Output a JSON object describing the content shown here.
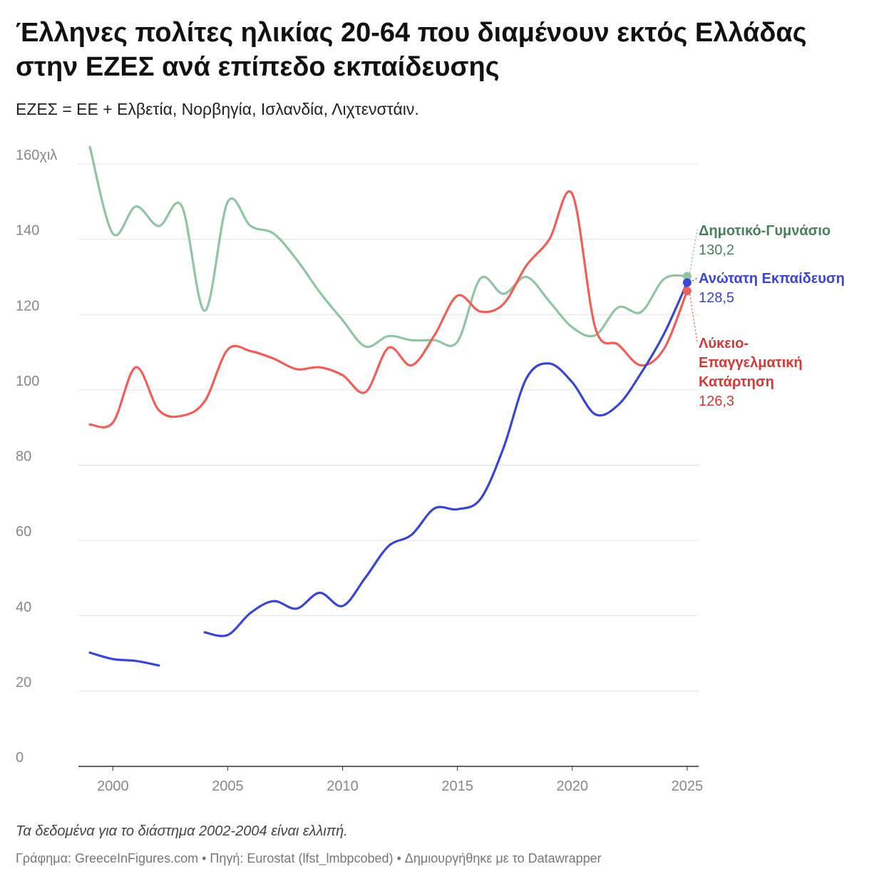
{
  "header": {
    "title": "Έλληνες πολίτες ηλικίας 20-64 που διαμένουν εκτός Ελλάδας στην ΕΖΕΣ ανά επίπεδο εκπαίδευσης",
    "subtitle": "ΕΖΕΣ = ΕΕ + Ελβετία, Νορβηγία, Ισλανδία, Λιχτενστάιν."
  },
  "footer": {
    "notes": "Τα δεδομένα για το διάστημα 2002-2004 είναι ελλιπή.",
    "credits": "Γράφημα: GreeceInFigures.com • Πηγή: Eurostat (lfst_lmbpcobed) • Δημιουργήθηκε με το Datawrapper"
  },
  "chart_data": {
    "type": "line",
    "title": "Έλληνες πολίτες ηλικίας 20-64 που διαμένουν εκτός Ελλάδας στην ΕΖΕΣ ανά επίπεδο εκπαίδευσης",
    "subtitle": "ΕΖΕΣ = ΕΕ + Ελβετία, Νορβηγία, Ισλανδία, Λιχτενστάιν.",
    "xlabel": "",
    "ylabel": "",
    "xlim": [
      1998.5,
      2025.5
    ],
    "ylim": [
      0,
      160
    ],
    "x_ticks": [
      {
        "value": 2000,
        "label": "2000"
      },
      {
        "value": 2005,
        "label": "2005"
      },
      {
        "value": 2010,
        "label": "2010"
      },
      {
        "value": 2015,
        "label": "2015"
      },
      {
        "value": 2020,
        "label": "2020"
      },
      {
        "value": 2025,
        "label": "2025"
      }
    ],
    "y_ticks": [
      {
        "value": 0,
        "label": "0"
      },
      {
        "value": 20,
        "label": "20"
      },
      {
        "value": 40,
        "label": "40"
      },
      {
        "value": 60,
        "label": "60"
      },
      {
        "value": 80,
        "label": "80"
      },
      {
        "value": 100,
        "label": "100"
      },
      {
        "value": 120,
        "label": "120"
      },
      {
        "value": 140,
        "label": "140"
      },
      {
        "value": 160,
        "label": "160χιλ"
      }
    ],
    "grid": true,
    "legend": "direct labels at line ends (right)",
    "series": [
      {
        "name": "Δημοτικό-Γυμνάσιο",
        "end_label": "130,2",
        "color": "#8fc5a2",
        "label_color": "#4a7f5c",
        "x": [
          1999,
          2000,
          2001,
          2002,
          2003,
          2004,
          2005,
          2006,
          2007,
          2008,
          2009,
          2010,
          2011,
          2012,
          2013,
          2014,
          2015,
          2016,
          2017,
          2018,
          2019,
          2020,
          2021,
          2022,
          2023,
          2024,
          2025
        ],
        "y": [
          164.5,
          141.5,
          148.7,
          143.5,
          148.8,
          121.0,
          149.9,
          143.5,
          141.5,
          134.6,
          126.0,
          118.5,
          111.5,
          114.3,
          113.2,
          113.2,
          112.8,
          129.6,
          125.5,
          130.0,
          123.5,
          116.6,
          114.5,
          121.9,
          120.7,
          129.5,
          130.2
        ]
      },
      {
        "name": "Ανώτατη Εκπαίδευση",
        "end_label": "128,5",
        "color": "#3a45d0",
        "label_color": "#3a45d0",
        "x": [
          1999,
          2000,
          2001,
          2002,
          2003,
          2004,
          2005,
          2006,
          2007,
          2008,
          2009,
          2010,
          2011,
          2012,
          2013,
          2014,
          2015,
          2016,
          2017,
          2018,
          2019,
          2020,
          2021,
          2022,
          2023,
          2024,
          2025
        ],
        "y": [
          30.2,
          28.5,
          28.0,
          26.8,
          null,
          35.6,
          34.9,
          40.8,
          43.9,
          41.9,
          46.1,
          42.6,
          50.2,
          58.5,
          61.5,
          68.5,
          68.3,
          71.0,
          84.5,
          103.0,
          107.0,
          102.0,
          93.5,
          96.0,
          104.5,
          115.0,
          128.5
        ]
      },
      {
        "name": "Λύκειο-Επαγγελματική Κατάρτηση",
        "label_lines": [
          "Λύκειο-",
          "Επαγγελματική",
          "Κατάρτηση"
        ],
        "end_label": "126,3",
        "color": "#ef5f58",
        "label_color": "#d33a35",
        "x": [
          1999,
          2000,
          2001,
          2002,
          2003,
          2004,
          2005,
          2006,
          2007,
          2008,
          2009,
          2010,
          2011,
          2012,
          2013,
          2014,
          2015,
          2016,
          2017,
          2018,
          2019,
          2020,
          2021,
          2022,
          2023,
          2024,
          2025
        ],
        "y": [
          90.8,
          91.3,
          106.0,
          94.6,
          93.1,
          97.0,
          110.7,
          110.3,
          108.3,
          105.5,
          106.0,
          103.9,
          99.4,
          111.2,
          106.5,
          114.5,
          125.0,
          120.8,
          122.8,
          133.0,
          140.0,
          152.0,
          116.5,
          112.0,
          106.5,
          111.0,
          126.3
        ]
      }
    ]
  }
}
